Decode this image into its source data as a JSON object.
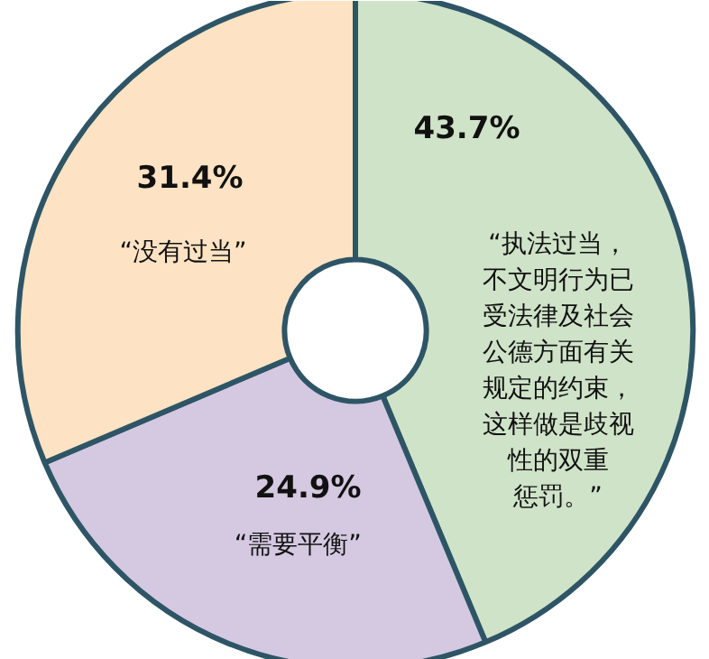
{
  "chart_data": {
    "type": "donut",
    "categories": [
      "“执法过当，不文明行为已受法律及社会公德方面有关规定的约束，这样做是歧视性的双重惩罚。”",
      "“需要平衡”",
      "“没有过当”"
    ],
    "values": [
      43.7,
      24.9,
      31.4
    ],
    "value_labels": [
      "43.7%",
      "24.9%",
      "31.4%"
    ],
    "colors": [
      "#cfe3c8",
      "#d4c9e1",
      "#fde3c3"
    ]
  }
}
